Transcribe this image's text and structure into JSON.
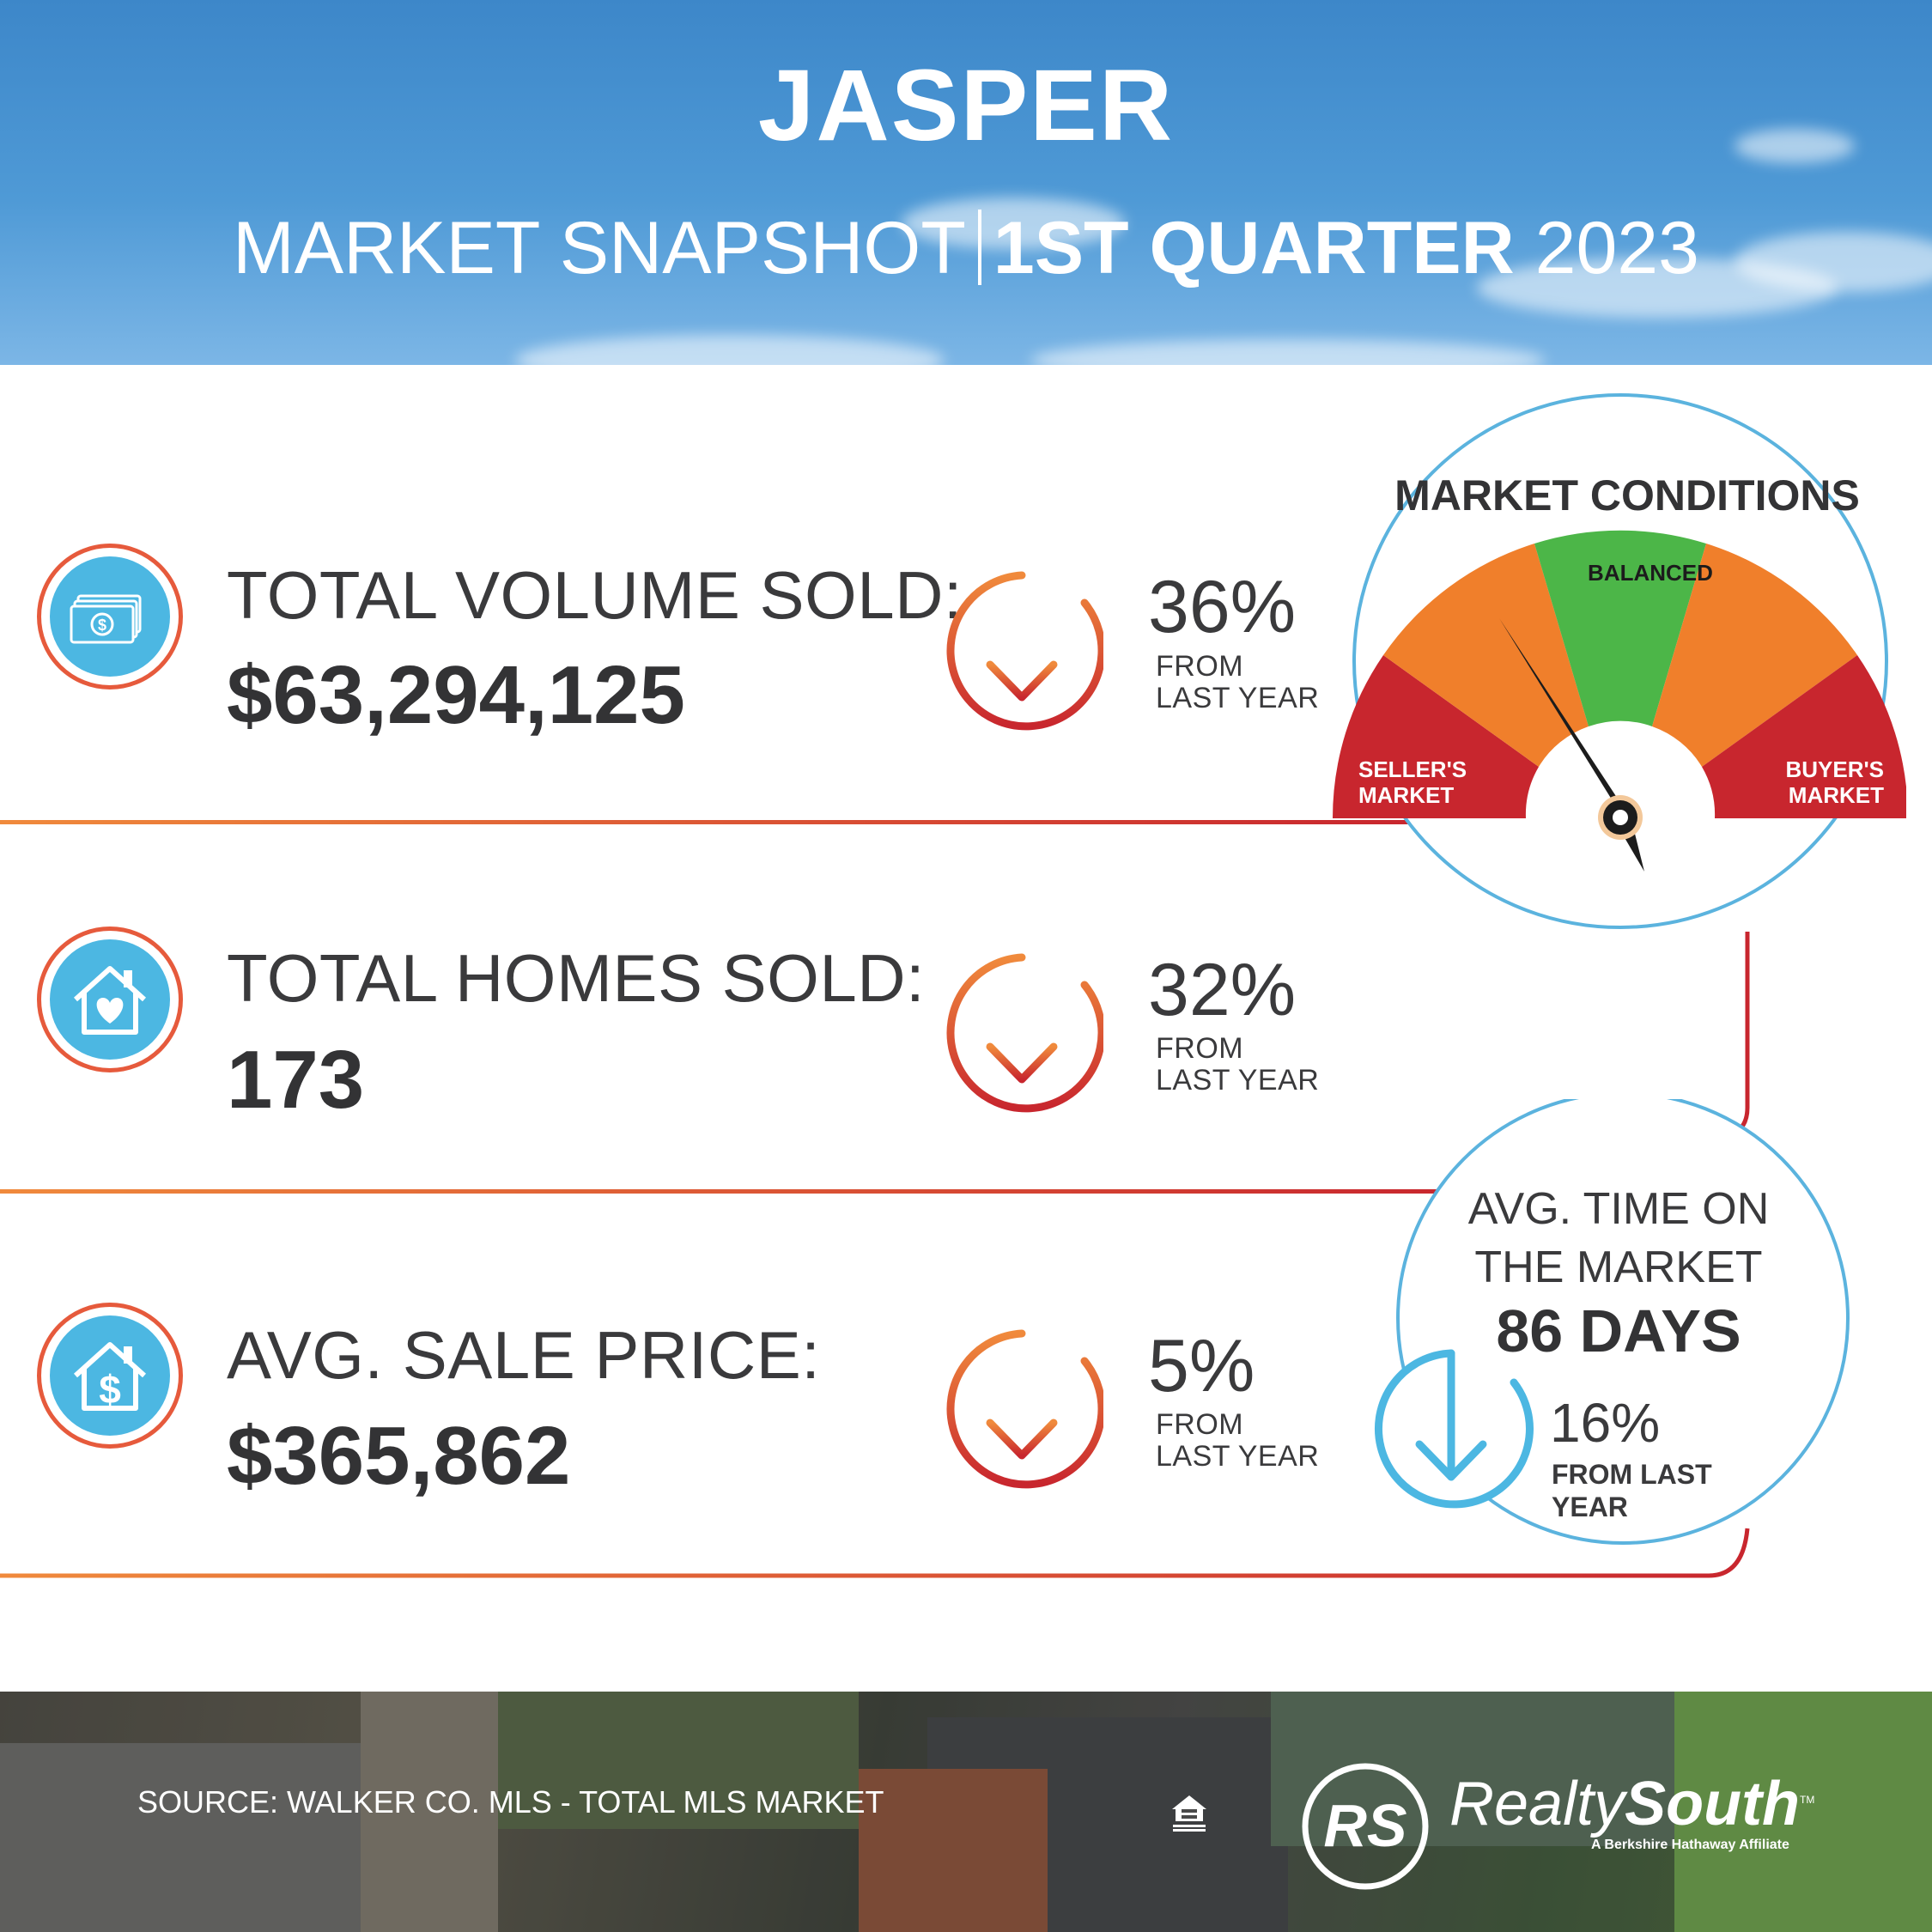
{
  "header": {
    "title": "JASPER",
    "subtitle_left": "MARKET SNAPSHOT",
    "subtitle_bold": "1ST QUARTER",
    "subtitle_year": "2023"
  },
  "stats": [
    {
      "label": "TOTAL VOLUME SOLD:",
      "value": "$63,294,125",
      "change": "36%",
      "change_line1": "FROM",
      "change_line2": "LAST YEAR",
      "icon": "money-icon"
    },
    {
      "label": "TOTAL HOMES SOLD:",
      "value": "173",
      "change": "32%",
      "change_line1": "FROM",
      "change_line2": "LAST YEAR",
      "icon": "house-heart-icon"
    },
    {
      "label": "AVG. SALE PRICE:",
      "value": "$365,862",
      "change": "5%",
      "change_line1": "FROM",
      "change_line2": "LAST YEAR",
      "icon": "house-dollar-icon"
    }
  ],
  "gauge": {
    "title": "MARKET CONDITIONS",
    "left_label_1": "SELLER'S",
    "left_label_2": "MARKET",
    "center_label": "BALANCED",
    "right_label_1": "BUYER'S",
    "right_label_2": "MARKET",
    "needle_position": "between seller's market and balanced"
  },
  "avg_time": {
    "label_line1": "AVG. TIME ON",
    "label_line2": "THE MARKET",
    "days": "86 DAYS",
    "change": "16%",
    "change_line1": "FROM LAST",
    "change_line2": "YEAR"
  },
  "footer": {
    "source": "SOURCE: WALKER CO. MLS - TOTAL MLS MARKET",
    "logo_mark": "RS",
    "brand_light": "Realty",
    "brand_bold": "South",
    "trademark": "TM",
    "tagline": "A Berkshire Hathaway Affiliate",
    "equal_housing_icon": "equal-housing-opportunity-icon"
  },
  "colors": {
    "sky_blue": "#4f9ad6",
    "icon_blue": "#4cb7e2",
    "orange": "#f07f2b",
    "red": "#c8262e",
    "green": "#4cb648",
    "text_dark": "#333335"
  }
}
